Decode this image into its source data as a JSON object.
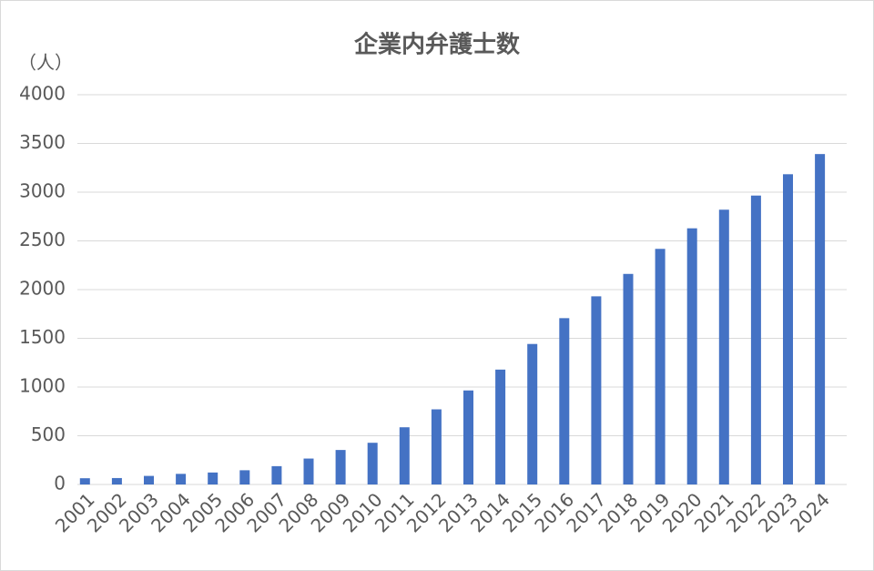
{
  "chart_data": {
    "type": "bar",
    "title": "企業内弁護士数",
    "y_label": "（人）",
    "categories": [
      "2001",
      "2002",
      "2003",
      "2004",
      "2005",
      "2006",
      "2007",
      "2008",
      "2009",
      "2010",
      "2011",
      "2012",
      "2013",
      "2014",
      "2015",
      "2016",
      "2017",
      "2018",
      "2019",
      "2020",
      "2021",
      "2022",
      "2023",
      "2024"
    ],
    "values": [
      64,
      66,
      88,
      109,
      123,
      146,
      188,
      266,
      354,
      428,
      587,
      771,
      965,
      1179,
      1442,
      1707,
      1931,
      2161,
      2418,
      2629,
      2820,
      2965,
      3184,
      3391
    ],
    "color": "#4472c4",
    "ylim": [
      0,
      4000
    ],
    "yticks": [
      0,
      500,
      1000,
      1500,
      2000,
      2500,
      3000,
      3500,
      4000
    ],
    "grid": true
  }
}
